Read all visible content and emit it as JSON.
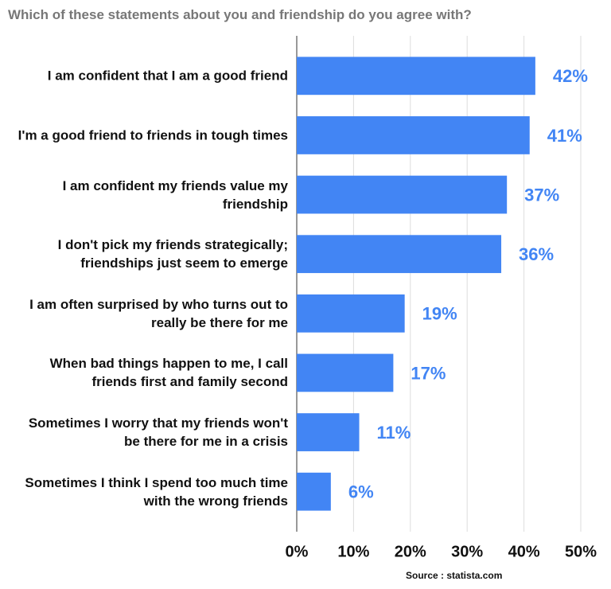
{
  "chart_data": {
    "type": "bar",
    "orientation": "horizontal",
    "title": "Which of these statements about you and friendship do you agree with?",
    "categories": [
      "I am confident that I am a good friend",
      "I'm a good friend to friends in tough times",
      "I am confident my friends value my friendship",
      "I don't pick my friends strategically; friendships just seem to emerge",
      "I am often surprised by who turns out to really be there for me",
      "When bad things happen to me, I call friends first and family second",
      "Sometimes I worry that my friends won't be there for me in a crisis",
      "Sometimes I think I spend too much time with the wrong friends"
    ],
    "values": [
      42,
      41,
      37,
      36,
      19,
      17,
      11,
      6
    ],
    "value_labels": [
      "42%",
      "41%",
      "37%",
      "36%",
      "19%",
      "17%",
      "11%",
      "6%"
    ],
    "color": "#4285f4",
    "xlim": [
      0,
      50
    ],
    "xticks": [
      {
        "value": 0,
        "label": "0%"
      },
      {
        "value": 10,
        "label": "10%"
      },
      {
        "value": 20,
        "label": "20%"
      },
      {
        "value": 30,
        "label": "30%"
      },
      {
        "value": 40,
        "label": "40%"
      },
      {
        "value": 50,
        "label": "50%"
      }
    ],
    "grid": true,
    "source": "Source : statista.com"
  }
}
